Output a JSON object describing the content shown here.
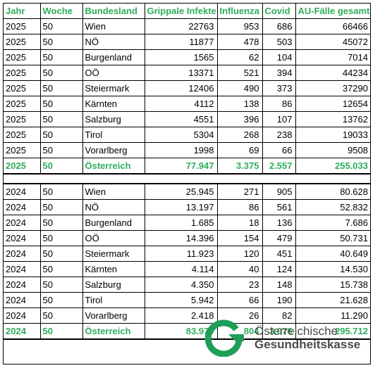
{
  "headers": [
    "Jahr",
    "Woche",
    "Bundesland",
    "Grippale Infekte",
    "Influenza",
    "Covid",
    "AU-Fälle gesamt"
  ],
  "section_2025": {
    "rows": [
      [
        "2025",
        "50",
        "Wien",
        "22763",
        "953",
        "686",
        "66466"
      ],
      [
        "2025",
        "50",
        "NÖ",
        "11877",
        "478",
        "503",
        "45072"
      ],
      [
        "2025",
        "50",
        "Burgenland",
        "1565",
        "62",
        "104",
        "7014"
      ],
      [
        "2025",
        "50",
        "OÖ",
        "13371",
        "521",
        "394",
        "44234"
      ],
      [
        "2025",
        "50",
        "Steiermark",
        "12406",
        "490",
        "373",
        "37290"
      ],
      [
        "2025",
        "50",
        "Kärnten",
        "4112",
        "138",
        "86",
        "12654"
      ],
      [
        "2025",
        "50",
        "Salzburg",
        "4551",
        "396",
        "107",
        "13762"
      ],
      [
        "2025",
        "50",
        "Tirol",
        "5304",
        "268",
        "238",
        "19033"
      ],
      [
        "2025",
        "50",
        "Vorarlberg",
        "1998",
        "69",
        "66",
        "9508"
      ]
    ],
    "total": [
      "2025",
      "50",
      "Österreich",
      "77.947",
      "3.375",
      "2.557",
      "255.033"
    ]
  },
  "section_2024": {
    "rows": [
      [
        "2024",
        "50",
        "Wien",
        "25.945",
        "271",
        "905",
        "80.628"
      ],
      [
        "2024",
        "50",
        "NÖ",
        "13.197",
        "86",
        "561",
        "52.832"
      ],
      [
        "2024",
        "50",
        "Burgenland",
        "1.685",
        "18",
        "136",
        "7.686"
      ],
      [
        "2024",
        "50",
        "OÖ",
        "14.396",
        "154",
        "479",
        "50.731"
      ],
      [
        "2024",
        "50",
        "Steiermark",
        "11.923",
        "120",
        "451",
        "40.649"
      ],
      [
        "2024",
        "50",
        "Kärnten",
        "4.114",
        "40",
        "124",
        "14.530"
      ],
      [
        "2024",
        "50",
        "Salzburg",
        "4.350",
        "23",
        "148",
        "15.738"
      ],
      [
        "2024",
        "50",
        "Tirol",
        "5.942",
        "66",
        "190",
        "21.628"
      ],
      [
        "2024",
        "50",
        "Vorarlberg",
        "2.418",
        "26",
        "82",
        "11.290"
      ]
    ],
    "total": [
      "2024",
      "50",
      "Österreich",
      "83.970",
      "804",
      "3.076",
      "295.712"
    ]
  },
  "logo": {
    "line1": "Österreichische",
    "line2": "Gesundheitskasse",
    "accent_color": "#1f9e57",
    "icon": "oegk-g-logo-icon"
  },
  "colors": {
    "header_text": "#2eae5b",
    "total_text": "#2eae5b",
    "border": "#000000"
  }
}
